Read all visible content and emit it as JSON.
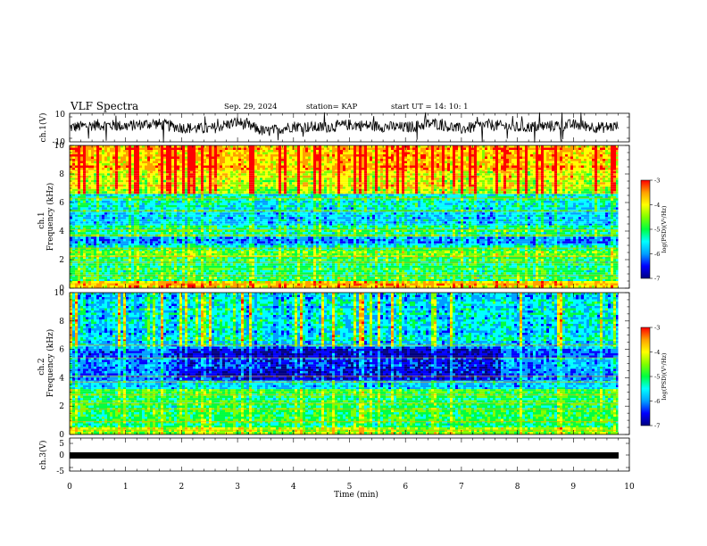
{
  "header": {
    "title": "VLF Spectra",
    "date": "Sep. 29, 2024",
    "station": "station= KAP",
    "start_ut": "start UT =   14: 10: 1"
  },
  "colors": {
    "spectrogram_scale": [
      "#000080",
      "#0000ff",
      "#00a0ff",
      "#00ffff",
      "#00ff40",
      "#80ff00",
      "#ffff00",
      "#ffa000",
      "#ff0000"
    ],
    "trace": "#000000"
  },
  "chart_data": [
    {
      "type": "line",
      "panel": "ch1-waveform",
      "ylabel": "ch.1(V)",
      "ylim": [
        -10,
        10
      ],
      "yticks": [
        "10",
        "-10"
      ],
      "xlim": [
        0,
        10
      ],
      "x": [
        0,
        0.5,
        1,
        1.5,
        2,
        2.5,
        3,
        3.5,
        4,
        4.5,
        5,
        5.5,
        6,
        6.5,
        7,
        7.5,
        8,
        8.5,
        9,
        9.5,
        9.8
      ],
      "values": [
        0,
        2,
        1,
        3,
        0,
        -1,
        4,
        -3,
        1,
        0,
        2,
        1,
        0,
        3,
        -1,
        2,
        0,
        1,
        2,
        0,
        1
      ]
    },
    {
      "type": "heatmap",
      "panel": "ch1-spectrogram",
      "ylabel": "ch.1\nFrequency (kHz)",
      "ylim": [
        0,
        10
      ],
      "yticks": [
        "0",
        "2",
        "4",
        "6",
        "8",
        "10"
      ],
      "xlim": [
        0,
        10
      ],
      "time_extent_min": 9.8,
      "colorbar": {
        "label": "log(PSD)(V²/Hz)",
        "range": [
          -7,
          -3
        ],
        "ticks": [
          "-3",
          "-4",
          "-5",
          "-6",
          "-7"
        ]
      },
      "bands": [
        {
          "f": [
            0,
            0.5
          ],
          "level": -4.0
        },
        {
          "f": [
            0.5,
            2.2
          ],
          "level": -5.0
        },
        {
          "f": [
            2.2,
            2.6
          ],
          "level": -4.6
        },
        {
          "f": [
            2.6,
            3.0
          ],
          "level": -5.2
        },
        {
          "f": [
            3.0,
            3.6
          ],
          "level": -5.8
        },
        {
          "f": [
            3.6,
            4.4
          ],
          "level": -5.2
        },
        {
          "f": [
            4.4,
            5.3
          ],
          "level": -5.8
        },
        {
          "f": [
            5.3,
            6.6
          ],
          "level": -5.4
        },
        {
          "f": [
            6.6,
            8.2
          ],
          "level": -4.3
        },
        {
          "f": [
            8.2,
            10
          ],
          "level": -3.8
        }
      ]
    },
    {
      "type": "heatmap",
      "panel": "ch2-spectrogram",
      "ylabel": "ch.2\nFrequency (kHz)",
      "ylim": [
        0,
        10
      ],
      "yticks": [
        "0",
        "2",
        "4",
        "6",
        "8",
        "10"
      ],
      "xlim": [
        0,
        10
      ],
      "time_extent_min": 9.8,
      "colorbar": {
        "label": "log(PSD)(V²/Hz)",
        "range": [
          -7,
          -3
        ],
        "ticks": [
          "-3",
          "-4",
          "-5",
          "-6",
          "-7"
        ]
      },
      "bands": [
        {
          "f": [
            0,
            0.5
          ],
          "level": -4.5
        },
        {
          "f": [
            0.5,
            2.2
          ],
          "level": -5.0
        },
        {
          "f": [
            2.2,
            3.2
          ],
          "level": -5.0
        },
        {
          "f": [
            3.2,
            3.8
          ],
          "level": -5.6
        },
        {
          "f": [
            3.8,
            6.2
          ],
          "level": -5.9,
          "blue_from_min": 1.9,
          "blue_to_min": 7.7,
          "blue_level": -6.4
        },
        {
          "f": [
            6.2,
            6.6
          ],
          "level": -5.6
        },
        {
          "f": [
            6.6,
            10
          ],
          "level": -5.5
        }
      ]
    },
    {
      "type": "line",
      "panel": "ch3-waveform",
      "ylabel": "ch.3(V)",
      "xlabel": "Time  (min)",
      "ylim": [
        -5,
        5
      ],
      "yticks": [
        "5",
        "0",
        "-5"
      ],
      "xlim": [
        0,
        10
      ],
      "xticks": [
        "0",
        "1",
        "2",
        "3",
        "4",
        "5",
        "6",
        "7",
        "8",
        "9",
        "10"
      ],
      "x": [
        0,
        9.8
      ],
      "values": [
        0,
        0
      ]
    }
  ]
}
